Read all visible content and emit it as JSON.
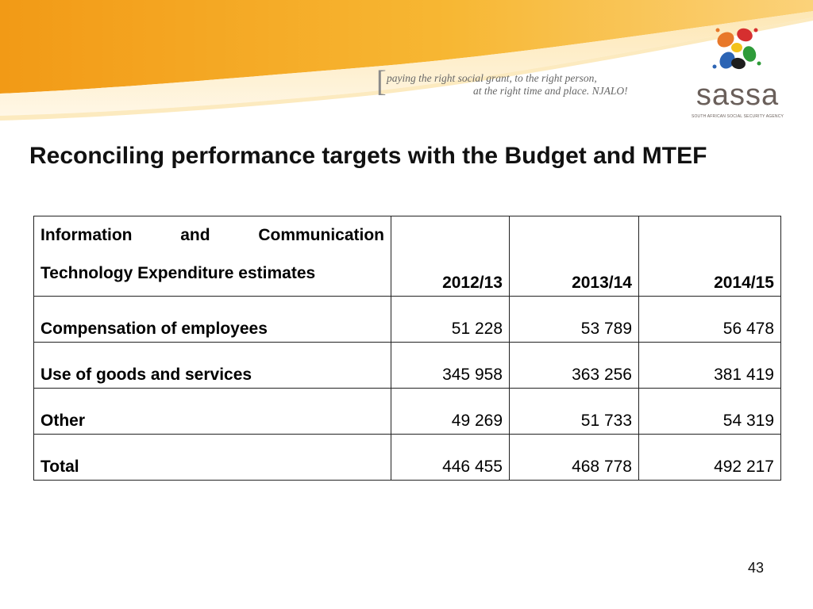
{
  "header": {
    "bracket": "[",
    "tagline_line1": "paying the right social grant, to the right person,",
    "tagline_line2": "at the right time and place. NJALO!",
    "logo_word": "sassa",
    "logo_subtitle": "SOUTH AFRICAN SOCIAL SECURITY AGENCY",
    "colors": {
      "banner_orange": "#f5a623",
      "banner_light": "#fde3a7"
    }
  },
  "title": "Reconciling performance targets with the Budget and MTEF",
  "table": {
    "header": {
      "label": "Information and Communication Technology Expenditure estimates",
      "years": [
        "2012/13",
        "2013/14",
        "2014/15"
      ]
    },
    "rows": [
      {
        "label": "Compensation of employees",
        "values": [
          "51 228",
          "53 789",
          "56 478"
        ]
      },
      {
        "label": "Use of goods and services",
        "values": [
          "345 958",
          "363 256",
          "381 419"
        ]
      },
      {
        "label": "Other",
        "values": [
          "49 269",
          "51 733",
          "54 319"
        ]
      },
      {
        "label": "Total",
        "values": [
          "446 455",
          "468 778",
          "492 217"
        ]
      }
    ]
  },
  "page_number": "43"
}
